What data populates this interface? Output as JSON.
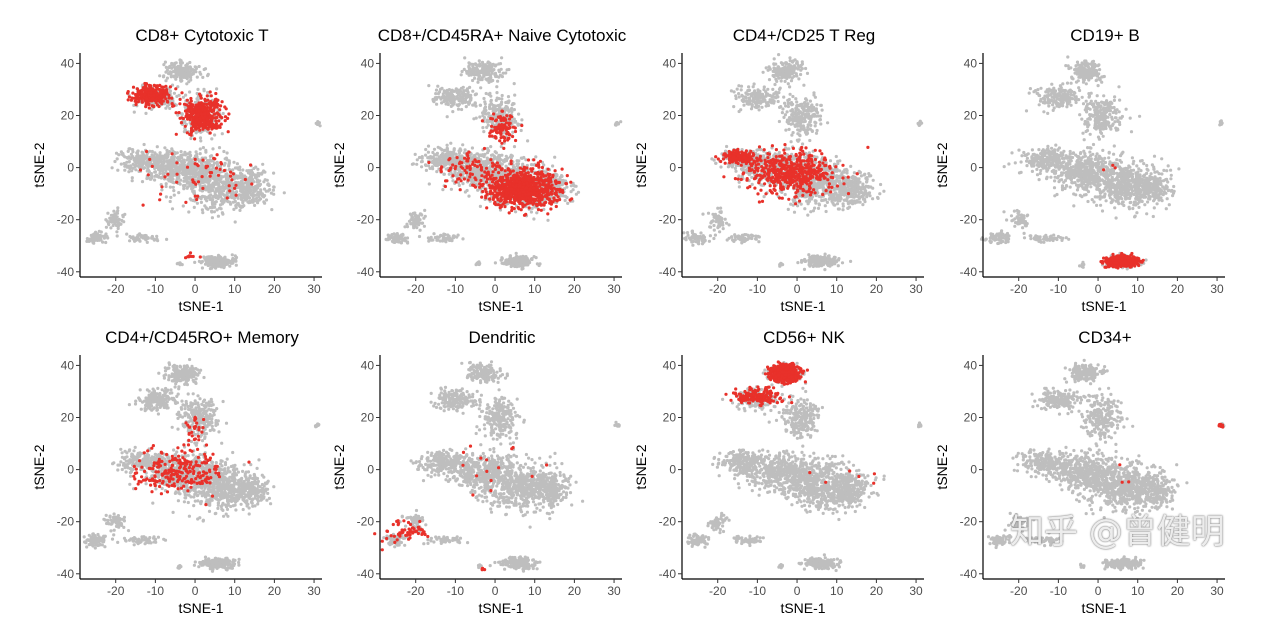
{
  "chart_data": {
    "type": "scatter",
    "layout": "grid 2 rows x 4 columns",
    "xlabel": "tSNE-1",
    "ylabel": "tSNE-2",
    "xlim": [
      -29,
      32
    ],
    "ylim": [
      -42,
      44
    ],
    "xticks": [
      -20,
      -10,
      0,
      10,
      20,
      30
    ],
    "yticks": [
      -40,
      -20,
      0,
      20,
      40
    ],
    "grid": false,
    "colors": {
      "background": "#bebebe",
      "highlight": "#e8312a"
    },
    "background_clusters": [
      {
        "center": [
          -3,
          37
        ],
        "spread": [
          2.8,
          2.4
        ],
        "n": 160
      },
      {
        "center": [
          -10,
          27
        ],
        "spread": [
          3.5,
          2.5
        ],
        "n": 160
      },
      {
        "center": [
          1,
          20
        ],
        "spread": [
          3,
          5
        ],
        "n": 220
      },
      {
        "center": [
          -13,
          3
        ],
        "spread": [
          4,
          2.5
        ],
        "n": 200
      },
      {
        "center": [
          -3,
          -1
        ],
        "spread": [
          6,
          4.5
        ],
        "n": 450
      },
      {
        "center": [
          7,
          -7
        ],
        "spread": [
          6,
          5.5
        ],
        "n": 500
      },
      {
        "center": [
          14,
          -8
        ],
        "spread": [
          3,
          3.5
        ],
        "n": 150
      },
      {
        "center": [
          -25,
          -27
        ],
        "spread": [
          1.8,
          1.3
        ],
        "n": 70
      },
      {
        "center": [
          -20,
          -20
        ],
        "spread": [
          1.5,
          2
        ],
        "n": 60
      },
      {
        "center": [
          -13,
          -27
        ],
        "spread": [
          3,
          0.9
        ],
        "n": 50
      },
      {
        "center": [
          6,
          -36
        ],
        "spread": [
          2.6,
          1.3
        ],
        "n": 180
      },
      {
        "center": [
          31,
          17
        ],
        "spread": [
          0.4,
          0.5
        ],
        "n": 12
      },
      {
        "center": [
          -4,
          -37
        ],
        "spread": [
          0.4,
          0.5
        ],
        "n": 8
      }
    ],
    "panels": [
      {
        "title": "CD8+ Cytotoxic T",
        "highlight": [
          {
            "center": [
              -11,
              28
            ],
            "spread": [
              3,
              2.3
            ],
            "n": 300
          },
          {
            "center": [
              2,
              20
            ],
            "spread": [
              3,
              4
            ],
            "n": 380
          },
          {
            "center": [
              0,
              -3
            ],
            "spread": [
              8,
              6
            ],
            "n": 60
          },
          {
            "center": [
              0,
              -34
            ],
            "spread": [
              1.5,
              0.6
            ],
            "n": 8
          }
        ]
      },
      {
        "title": "CD8+/CD45RA+ Naive Cytotoxic",
        "highlight": [
          {
            "center": [
              7,
              -8
            ],
            "spread": [
              5.5,
              4.5
            ],
            "n": 800
          },
          {
            "center": [
              2,
              15
            ],
            "spread": [
              2,
              4
            ],
            "n": 100
          },
          {
            "center": [
              -6,
              0
            ],
            "spread": [
              5,
              4
            ],
            "n": 80
          }
        ]
      },
      {
        "title": "CD4+/CD25 T Reg",
        "highlight": [
          {
            "center": [
              -15,
              4
            ],
            "spread": [
              2,
              1.3
            ],
            "n": 200
          },
          {
            "center": [
              -2,
              -2
            ],
            "spread": [
              7,
              5
            ],
            "n": 500
          }
        ]
      },
      {
        "title": "CD19+ B",
        "highlight": [
          {
            "center": [
              6,
              -36
            ],
            "spread": [
              2.3,
              1.1
            ],
            "n": 600
          },
          {
            "center": [
              2,
              0
            ],
            "spread": [
              2,
              2
            ],
            "n": 3
          }
        ]
      },
      {
        "title": "CD4+/CD45RO+ Memory",
        "highlight": [
          {
            "center": [
              -4,
              -1
            ],
            "spread": [
              7,
              5
            ],
            "n": 220
          },
          {
            "center": [
              0,
              15
            ],
            "spread": [
              2,
              5
            ],
            "n": 30
          }
        ]
      },
      {
        "title": "Dendritic",
        "highlight": [
          {
            "center": [
              -22,
              -24
            ],
            "spread": [
              3.5,
              2.5
            ],
            "n": 60
          },
          {
            "center": [
              0,
              0
            ],
            "spread": [
              8,
              7
            ],
            "n": 15
          },
          {
            "center": [
              -3,
              -38
            ],
            "spread": [
              0.3,
              0.3
            ],
            "n": 5
          }
        ]
      },
      {
        "title": "CD56+ NK",
        "highlight": [
          {
            "center": [
              -3,
              37
            ],
            "spread": [
              2.4,
              2.2
            ],
            "n": 500
          },
          {
            "center": [
              -10,
              28
            ],
            "spread": [
              4,
              2
            ],
            "n": 150
          },
          {
            "center": [
              10,
              -4
            ],
            "spread": [
              5,
              4
            ],
            "n": 6
          }
        ]
      },
      {
        "title": "CD34+",
        "highlight": [
          {
            "center": [
              31,
              17
            ],
            "spread": [
              0.3,
              0.4
            ],
            "n": 20
          },
          {
            "center": [
              5,
              -5
            ],
            "spread": [
              3,
              5
            ],
            "n": 3
          }
        ]
      }
    ]
  },
  "watermark": "知乎 @曾健明"
}
